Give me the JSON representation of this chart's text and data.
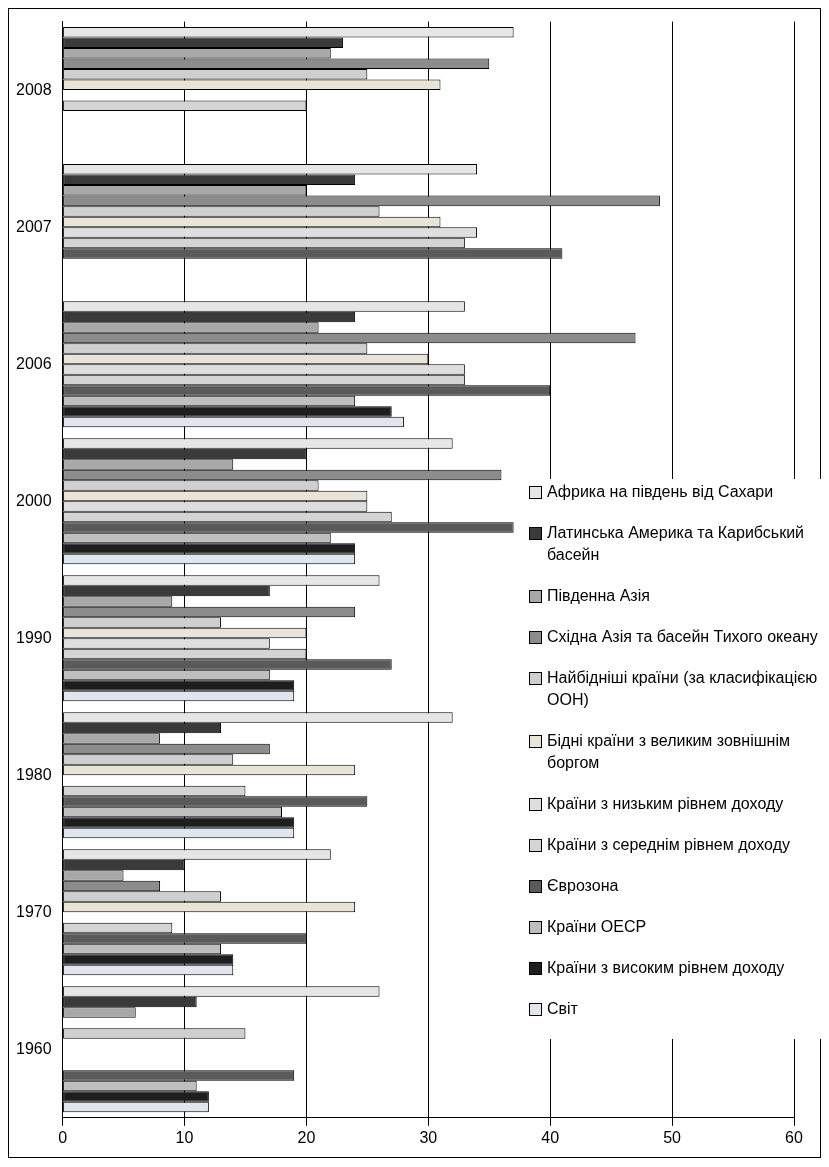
{
  "chart_data": {
    "type": "bar",
    "orientation": "horizontal",
    "categories": [
      "2008",
      "2007",
      "2006",
      "2000",
      "1990",
      "1980",
      "1970",
      "1960"
    ],
    "series": [
      {
        "name": "Африка на південь від Сахари",
        "color": "#e6e6e6",
        "values": [
          37,
          34,
          33,
          32,
          26,
          32,
          22,
          26
        ]
      },
      {
        "name": "Латинська Америка та Карибський басейн",
        "color": "#3a3a3a",
        "values": [
          23,
          24,
          24,
          20,
          17,
          13,
          10,
          11
        ]
      },
      {
        "name": "Південна Азія",
        "color": "#a8a8a8",
        "values": [
          22,
          20,
          21,
          14,
          9,
          8,
          5,
          6
        ]
      },
      {
        "name": "Східна Азія та басейн Тихого океану",
        "color": "#8c8c8c",
        "values": [
          35,
          49,
          47,
          36,
          24,
          17,
          8,
          null
        ]
      },
      {
        "name": "Найбідніші країни (за класифікацією ООН)",
        "color": "#cfcfcf",
        "values": [
          25,
          26,
          25,
          21,
          13,
          14,
          13,
          15
        ]
      },
      {
        "name": "Бідні країни з великим зовнішнім боргом",
        "color": "#e9e4d8",
        "values": [
          31,
          31,
          30,
          25,
          20,
          24,
          24,
          null
        ]
      },
      {
        "name": "Країни з низьким рівнем доходу",
        "color": "#dedede",
        "values": [
          null,
          34,
          33,
          25,
          17,
          null,
          null,
          null
        ]
      },
      {
        "name": "Країни з середнім рівнем доходу",
        "color": "#d4d4d4",
        "values": [
          20,
          33,
          33,
          27,
          20,
          15,
          9,
          null
        ]
      },
      {
        "name": "Єврозона",
        "color": "#5a5a5a",
        "values": [
          null,
          41,
          40,
          37,
          27,
          25,
          20,
          19
        ]
      },
      {
        "name": "Країни ОЕСР",
        "color": "#bfbfbf",
        "values": [
          null,
          null,
          24,
          22,
          17,
          18,
          13,
          11
        ]
      },
      {
        "name": "Країни з високим рівнем доходу",
        "color": "#1e1e1e",
        "values": [
          null,
          null,
          27,
          24,
          19,
          19,
          14,
          12
        ]
      },
      {
        "name": "Світ",
        "color": "#e1e6ee",
        "values": [
          null,
          null,
          28,
          24,
          19,
          19,
          14,
          12
        ]
      }
    ],
    "xlim": [
      0,
      60
    ],
    "xticks": [
      0,
      10,
      20,
      30,
      40,
      50,
      60
    ],
    "grid": "x",
    "legend": "right"
  }
}
